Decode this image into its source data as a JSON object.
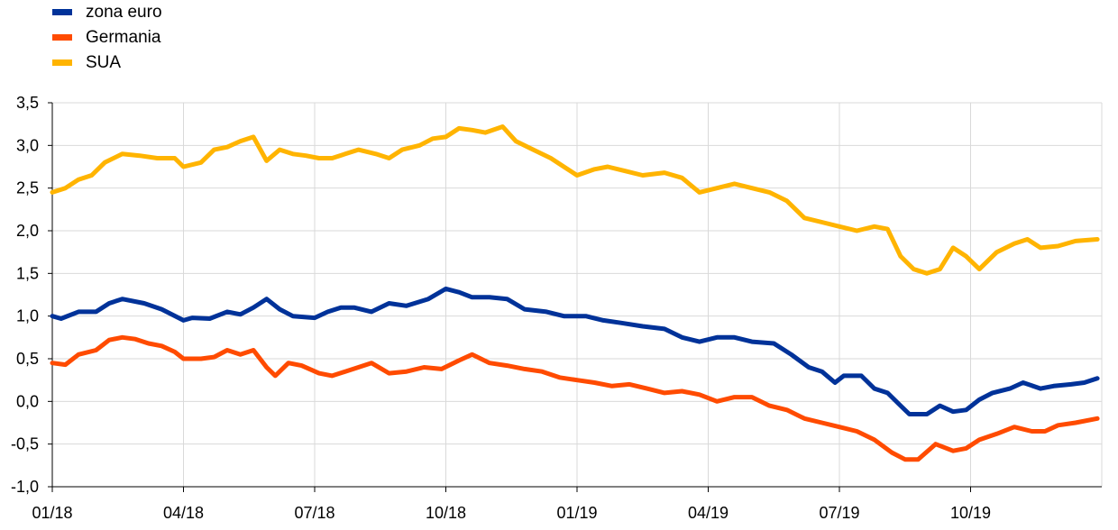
{
  "chart_data": {
    "type": "line",
    "title": "",
    "xlabel": "",
    "ylabel": "",
    "ylim": [
      -1.0,
      3.5
    ],
    "y_ticks": [
      "3,5",
      "3,0",
      "2,5",
      "2,0",
      "1,5",
      "1,0",
      "0,5",
      "0,0",
      "-0,5",
      "-1,0"
    ],
    "y_tick_values": [
      3.5,
      3.0,
      2.5,
      2.0,
      1.5,
      1.0,
      0.5,
      0.0,
      -0.5,
      -1.0
    ],
    "x_ticks": [
      "01/18",
      "04/18",
      "07/18",
      "10/18",
      "01/19",
      "04/19",
      "07/19",
      "10/19"
    ],
    "x_tick_months": [
      0,
      3,
      6,
      9,
      12,
      15,
      18,
      21
    ],
    "grid": "vertical and horizontal",
    "legend_position": "top-left",
    "series": [
      {
        "name": "zona euro",
        "color": "#003299",
        "x_months": [
          0,
          0.2,
          0.6,
          1,
          1.3,
          1.6,
          2.1,
          2.5,
          3.0,
          3.2,
          3.6,
          4.0,
          4.3,
          4.6,
          4.9,
          5.2,
          5.5,
          6.0,
          6.3,
          6.6,
          6.9,
          7.3,
          7.7,
          8.1,
          8.6,
          9.0,
          9.3,
          9.6,
          10.0,
          10.4,
          10.8,
          11.3,
          11.7,
          12.2,
          12.6,
          13.0,
          13.5,
          14.0,
          14.4,
          14.8,
          15.2,
          15.6,
          16.0,
          16.5,
          16.9,
          17.3,
          17.6,
          17.9,
          18.1,
          18.5,
          18.8,
          19.1,
          19.4,
          19.6,
          20.0,
          20.3,
          20.6,
          20.9,
          21.2,
          21.5,
          21.9,
          22.2,
          22.6,
          22.9,
          23.3,
          23.6,
          23.9
        ],
        "y": [
          1.0,
          0.97,
          1.05,
          1.05,
          1.15,
          1.2,
          1.15,
          1.08,
          0.95,
          0.98,
          0.97,
          1.05,
          1.02,
          1.1,
          1.2,
          1.08,
          1.0,
          0.98,
          1.05,
          1.1,
          1.1,
          1.05,
          1.15,
          1.12,
          1.2,
          1.32,
          1.28,
          1.22,
          1.22,
          1.2,
          1.08,
          1.05,
          1.0,
          1.0,
          0.95,
          0.92,
          0.88,
          0.85,
          0.75,
          0.7,
          0.75,
          0.75,
          0.7,
          0.68,
          0.55,
          0.4,
          0.35,
          0.22,
          0.3,
          0.3,
          0.15,
          0.1,
          -0.05,
          -0.15,
          -0.15,
          -0.05,
          -0.12,
          -0.1,
          0.02,
          0.1,
          0.15,
          0.22,
          0.15,
          0.18,
          0.2,
          0.22,
          0.27
        ]
      },
      {
        "name": "Germania",
        "color": "#ff4b00",
        "x_months": [
          0,
          0.3,
          0.6,
          1,
          1.3,
          1.6,
          1.9,
          2.2,
          2.5,
          2.8,
          3.0,
          3.4,
          3.7,
          4.0,
          4.3,
          4.6,
          4.9,
          5.1,
          5.4,
          5.7,
          6.1,
          6.4,
          6.7,
          7.0,
          7.3,
          7.7,
          8.1,
          8.5,
          8.9,
          9.3,
          9.6,
          10.0,
          10.4,
          10.8,
          11.2,
          11.6,
          12.0,
          12.4,
          12.8,
          13.2,
          13.6,
          14.0,
          14.4,
          14.8,
          15.2,
          15.6,
          16.0,
          16.4,
          16.8,
          17.2,
          17.6,
          18.0,
          18.4,
          18.8,
          19.2,
          19.5,
          19.8,
          20.2,
          20.6,
          20.9,
          21.2,
          21.6,
          22.0,
          22.4,
          22.7,
          23.0,
          23.4,
          23.9
        ],
        "y": [
          0.45,
          0.43,
          0.55,
          0.6,
          0.72,
          0.75,
          0.73,
          0.68,
          0.65,
          0.58,
          0.5,
          0.5,
          0.52,
          0.6,
          0.55,
          0.6,
          0.4,
          0.3,
          0.45,
          0.42,
          0.33,
          0.3,
          0.35,
          0.4,
          0.45,
          0.33,
          0.35,
          0.4,
          0.38,
          0.48,
          0.55,
          0.45,
          0.42,
          0.38,
          0.35,
          0.28,
          0.25,
          0.22,
          0.18,
          0.2,
          0.15,
          0.1,
          0.12,
          0.08,
          0.0,
          0.05,
          0.05,
          -0.05,
          -0.1,
          -0.2,
          -0.25,
          -0.3,
          -0.35,
          -0.45,
          -0.6,
          -0.68,
          -0.68,
          -0.5,
          -0.58,
          -0.55,
          -0.45,
          -0.38,
          -0.3,
          -0.35,
          -0.35,
          -0.28,
          -0.25,
          -0.2
        ]
      },
      {
        "name": "SUA",
        "color": "#ffb400",
        "x_months": [
          0,
          0.3,
          0.6,
          0.9,
          1.2,
          1.6,
          2.0,
          2.4,
          2.8,
          3.0,
          3.4,
          3.7,
          4.0,
          4.3,
          4.6,
          4.9,
          5.2,
          5.5,
          5.8,
          6.1,
          6.4,
          6.7,
          7.0,
          7.4,
          7.7,
          8.0,
          8.4,
          8.7,
          9.0,
          9.3,
          9.6,
          9.9,
          10.3,
          10.6,
          11.0,
          11.4,
          11.7,
          12.0,
          12.4,
          12.7,
          13.1,
          13.5,
          14.0,
          14.4,
          14.8,
          15.2,
          15.6,
          16.0,
          16.4,
          16.8,
          17.2,
          17.6,
          18.0,
          18.4,
          18.8,
          19.1,
          19.4,
          19.7,
          20.0,
          20.3,
          20.6,
          20.9,
          21.2,
          21.6,
          22.0,
          22.3,
          22.6,
          23.0,
          23.4,
          23.9
        ],
        "y": [
          2.45,
          2.5,
          2.6,
          2.65,
          2.8,
          2.9,
          2.88,
          2.85,
          2.85,
          2.75,
          2.8,
          2.95,
          2.98,
          3.05,
          3.1,
          2.82,
          2.95,
          2.9,
          2.88,
          2.85,
          2.85,
          2.9,
          2.95,
          2.9,
          2.85,
          2.95,
          3.0,
          3.08,
          3.1,
          3.2,
          3.18,
          3.15,
          3.22,
          3.05,
          2.95,
          2.85,
          2.75,
          2.65,
          2.72,
          2.75,
          2.7,
          2.65,
          2.68,
          2.62,
          2.45,
          2.5,
          2.55,
          2.5,
          2.45,
          2.35,
          2.15,
          2.1,
          2.05,
          2.0,
          2.05,
          2.02,
          1.7,
          1.55,
          1.5,
          1.55,
          1.8,
          1.7,
          1.55,
          1.75,
          1.85,
          1.9,
          1.8,
          1.82,
          1.88,
          1.9
        ]
      }
    ]
  }
}
